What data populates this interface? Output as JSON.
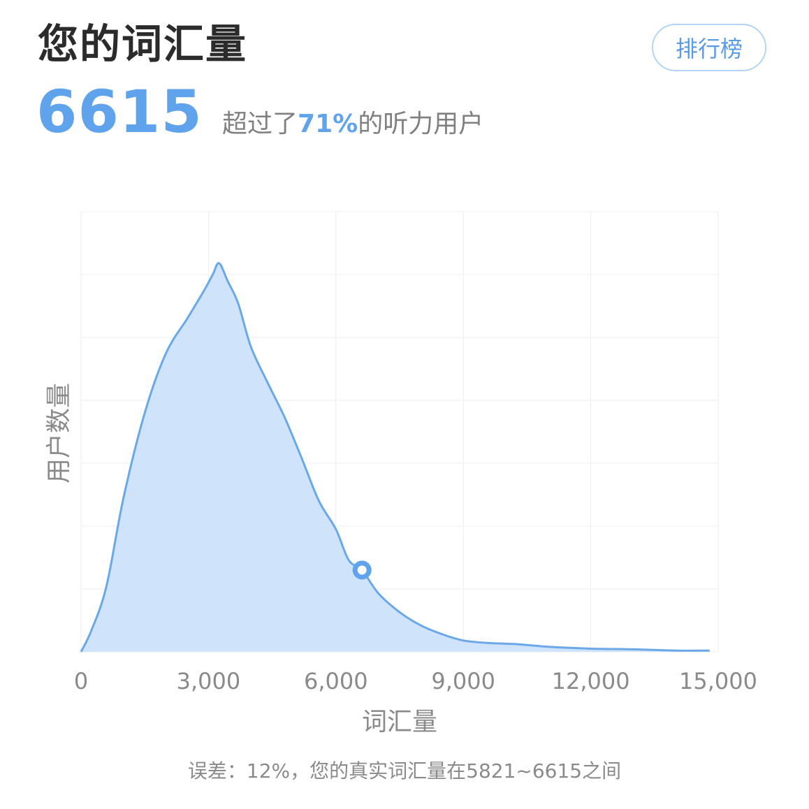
{
  "header": {
    "title": "您的词汇量",
    "rank_label": "排行榜",
    "score": "6615",
    "summary_prefix": "超过了",
    "summary_percent": "71%",
    "summary_suffix": "的听力用户"
  },
  "footnote": "误差：12%，您的真实词汇量在5821~6615之间",
  "colors": {
    "accent": "#5fa3ec",
    "line": "#6aa8e8",
    "fill": "#cfe3fb",
    "grid": "#eeeeee"
  },
  "chart_data": {
    "type": "area",
    "xlabel": "词汇量",
    "ylabel": "用户数量",
    "xlim": [
      0,
      15000
    ],
    "ylim": [
      0,
      7
    ],
    "x_ticks": [
      "0",
      "3,000",
      "6,000",
      "9,000",
      "12,000",
      "15,000"
    ],
    "x_tick_values": [
      0,
      3000,
      6000,
      9000,
      12000,
      15000
    ],
    "y_gridlines": 7,
    "grid": true,
    "series": [
      {
        "x": [
          0,
          250,
          600,
          1000,
          1500,
          2000,
          2500,
          2900,
          3100,
          3250,
          3450,
          3700,
          4000,
          4400,
          4800,
          5200,
          5600,
          6000,
          6300,
          6615,
          7000,
          7500,
          8000,
          8500,
          9000,
          9600,
          10300,
          11000,
          12000,
          13000,
          14000,
          14800
        ],
        "y": [
          0,
          0.35,
          1.05,
          2.45,
          3.8,
          4.75,
          5.3,
          5.75,
          6.0,
          6.18,
          5.9,
          5.54,
          4.85,
          4.27,
          3.72,
          3.07,
          2.4,
          1.95,
          1.46,
          1.3,
          0.93,
          0.63,
          0.42,
          0.28,
          0.18,
          0.14,
          0.12,
          0.08,
          0.05,
          0.04,
          0.02,
          0.02
        ]
      }
    ],
    "marker": {
      "x": 6615,
      "y": 1.3
    }
  }
}
